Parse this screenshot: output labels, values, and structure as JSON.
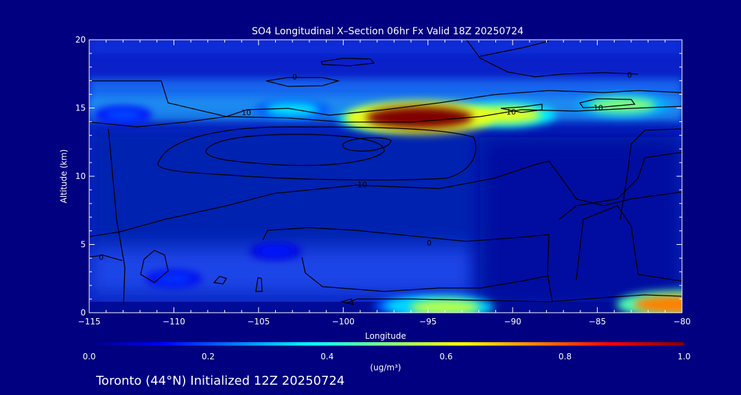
{
  "chart_data": {
    "type": "heatmap",
    "title": "SO4 Longitudinal X–Section 06hr  Fx Valid 18Z 20250724",
    "xlabel": "Longitude",
    "ylabel": "Altitude (km)",
    "xlim": [
      -115,
      -80
    ],
    "ylim": [
      0,
      20
    ],
    "x_ticks": [
      -115,
      -110,
      -105,
      -100,
      -95,
      -90,
      -85,
      -80
    ],
    "x_tick_labels": [
      "−115",
      "−110",
      "−105",
      "−100",
      "−95",
      "−90",
      "−85",
      "−80"
    ],
    "y_ticks": [
      0,
      5,
      10,
      15,
      20
    ],
    "y_tick_labels": [
      "0",
      "5",
      "10",
      "15",
      "20"
    ],
    "colorbar": {
      "min": 0.0,
      "max": 1.0,
      "ticks": [
        0.0,
        0.2,
        0.4,
        0.6,
        0.8,
        1.0
      ],
      "tick_labels": [
        "0.0",
        "0.2",
        "0.4",
        "0.6",
        "0.8",
        "1.0"
      ],
      "unit_label": "(ug/m³)",
      "colors": [
        "#00007f",
        "#0000ff",
        "#0080ff",
        "#00ffff",
        "#80ff80",
        "#ffff00",
        "#ff8000",
        "#ff0000",
        "#7f0000"
      ]
    },
    "contour_labels": [
      "0",
      "0",
      "10",
      "10",
      "10",
      "10",
      "0",
      "0"
    ],
    "concentration_features": [
      {
        "lon": -95.5,
        "alt": 14.3,
        "value": 1.0
      },
      {
        "lon": -90.5,
        "alt": 14.5,
        "value": 0.6
      },
      {
        "lon": -97.5,
        "alt": 14.2,
        "value": 0.55
      },
      {
        "lon": -83.5,
        "alt": 15.2,
        "value": 0.5
      },
      {
        "lon": -103,
        "alt": 14.9,
        "value": 0.35
      },
      {
        "lon": -113,
        "alt": 14.5,
        "value": 0.2
      },
      {
        "lon": -94,
        "alt": 0.4,
        "value": 0.55
      },
      {
        "lon": -96,
        "alt": 0.5,
        "value": 0.35
      },
      {
        "lon": -80.3,
        "alt": 0.6,
        "value": 0.75
      },
      {
        "lon": -110,
        "alt": 2.5,
        "value": 0.18
      },
      {
        "lon": -104,
        "alt": 4.5,
        "value": 0.15
      }
    ]
  },
  "footer": {
    "caption": "Toronto (44°N) Initialized 12Z 20250724"
  }
}
